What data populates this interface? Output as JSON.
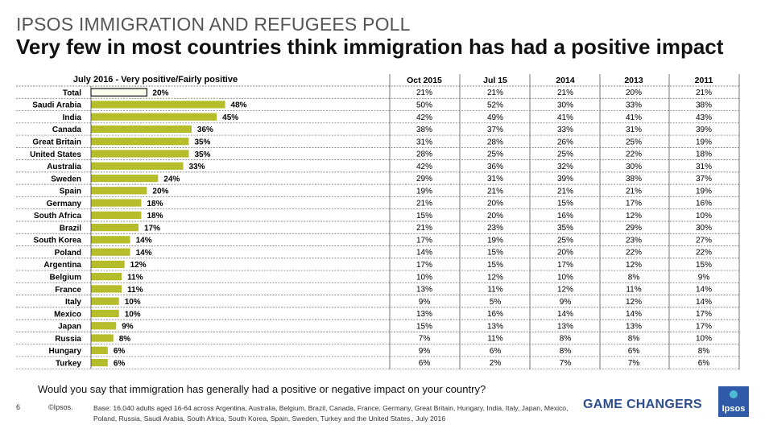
{
  "supertitle": "IPSOS IMMIGRATION AND REFUGEES POLL",
  "headline": "Very few in most countries think immigration has had a positive impact",
  "question": "Would you say that immigration has generally had a positive or negative impact on your country?",
  "footer": {
    "page_number": "6",
    "copyright": "©Ipsos.",
    "base": "Base: 16,040 adults aged 16-64 across  Argentina, Australia, Belgium, Brazil, Canada, France, Germany, Great Britain, Hungary, India, Italy, Japan, Mexico, Poland, Russia, Saudi Arabia, South Africa, South Korea, Spain, Sweden, Turkey and the United States., July 2016",
    "brand": "GAME CHANGERS",
    "logo_text": "Ipsos"
  },
  "colors": {
    "bar": "#b5bd2a",
    "total_bar": "#fdfdf0",
    "text": "#000000",
    "header": "#2e4d8c"
  },
  "chart_data": {
    "type": "bar",
    "orientation": "horizontal",
    "title": "July 2016 - Very positive/Fairly positive",
    "unit": "%",
    "categories": [
      "Total",
      "Saudi Arabia",
      "India",
      "Canada",
      "Great Britain",
      "United States",
      "Australia",
      "Sweden",
      "Spain",
      "Germany",
      "South Africa",
      "Brazil",
      "South Korea",
      "Poland",
      "Argentina",
      "Belgium",
      "France",
      "Italy",
      "Mexico",
      "Japan",
      "Russia",
      "Hungary",
      "Turkey"
    ],
    "values": [
      20,
      48,
      45,
      36,
      35,
      35,
      33,
      24,
      20,
      18,
      18,
      17,
      14,
      14,
      12,
      11,
      11,
      10,
      10,
      9,
      8,
      6,
      6
    ],
    "table": {
      "columns": [
        "Oct 2015",
        "Jul 15",
        "2014",
        "2013",
        "2011"
      ],
      "rows": [
        [
          "21%",
          "21%",
          "21%",
          "20%",
          "21%"
        ],
        [
          "50%",
          "52%",
          "30%",
          "33%",
          "38%"
        ],
        [
          "42%",
          "49%",
          "41%",
          "41%",
          "43%"
        ],
        [
          "38%",
          "37%",
          "33%",
          "31%",
          "39%"
        ],
        [
          "31%",
          "28%",
          "26%",
          "25%",
          "19%"
        ],
        [
          "28%",
          "25%",
          "25%",
          "22%",
          "18%"
        ],
        [
          "42%",
          "36%",
          "32%",
          "30%",
          "31%"
        ],
        [
          "29%",
          "31%",
          "39%",
          "38%",
          "37%"
        ],
        [
          "19%",
          "21%",
          "21%",
          "21%",
          "19%"
        ],
        [
          "21%",
          "20%",
          "15%",
          "17%",
          "16%"
        ],
        [
          "15%",
          "20%",
          "16%",
          "12%",
          "10%"
        ],
        [
          "21%",
          "23%",
          "35%",
          "29%",
          "30%"
        ],
        [
          "17%",
          "19%",
          "25%",
          "23%",
          "27%"
        ],
        [
          "14%",
          "15%",
          "20%",
          "22%",
          "22%"
        ],
        [
          "17%",
          "15%",
          "17%",
          "12%",
          "15%"
        ],
        [
          "10%",
          "12%",
          "10%",
          "8%",
          "9%"
        ],
        [
          "13%",
          "11%",
          "12%",
          "11%",
          "14%"
        ],
        [
          "9%",
          "5%",
          "9%",
          "12%",
          "14%"
        ],
        [
          "13%",
          "16%",
          "14%",
          "14%",
          "17%"
        ],
        [
          "15%",
          "13%",
          "13%",
          "13%",
          "17%"
        ],
        [
          "7%",
          "11%",
          "8%",
          "8%",
          "10%"
        ],
        [
          "9%",
          "6%",
          "8%",
          "6%",
          "8%"
        ],
        [
          "6%",
          "2%",
          "7%",
          "7%",
          "6%"
        ]
      ]
    }
  }
}
